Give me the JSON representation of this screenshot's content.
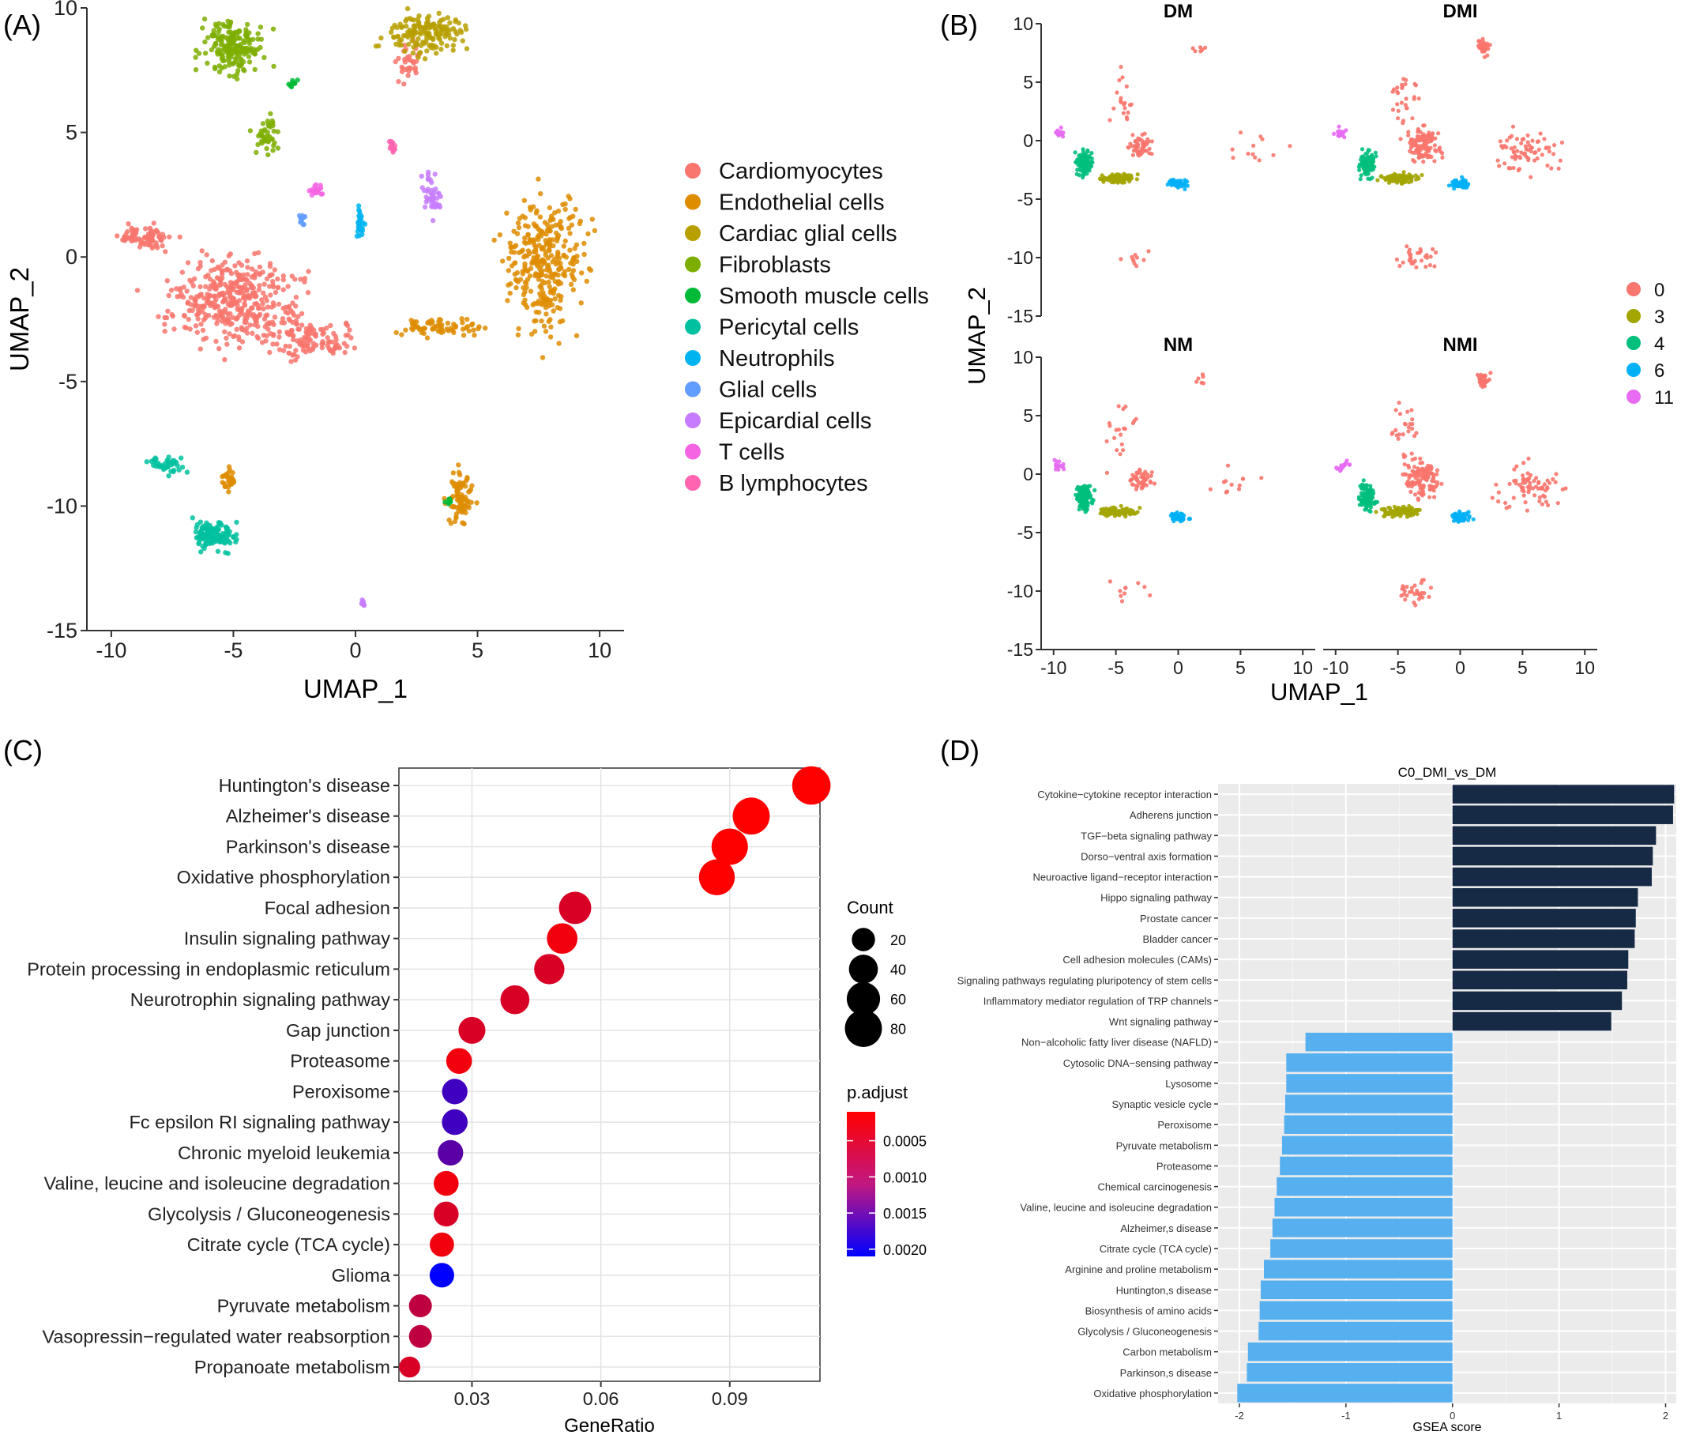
{
  "panel_labels": [
    "(A)",
    "(B)",
    "(C)",
    "(D)"
  ],
  "colors": {
    "grid_bg": "#ebebeb",
    "pos_bar": "#172a45",
    "neg_bar": "#56b0f0",
    "axis": "#333333"
  },
  "chart_data": [
    {
      "panel": "(A)",
      "type": "scatter",
      "xlabel": "UMAP_1",
      "ylabel": "UMAP_2",
      "xlim": [
        -11,
        11
      ],
      "ylim": [
        -15,
        10
      ],
      "x_ticks": [
        -10,
        -5,
        0,
        5,
        10
      ],
      "y_ticks": [
        10,
        5,
        0,
        -5,
        -10,
        -15
      ],
      "legend_position": "right",
      "clusters": [
        {
          "name": "Cardiomyocytes",
          "color": "#f8766d"
        },
        {
          "name": "Endothelial cells",
          "color": "#de8c00"
        },
        {
          "name": "Cardiac glial cells",
          "color": "#b79f00"
        },
        {
          "name": "Fibroblasts",
          "color": "#7cae00"
        },
        {
          "name": "Smooth muscle cells",
          "color": "#00ba38"
        },
        {
          "name": "Pericytal cells",
          "color": "#00c19f"
        },
        {
          "name": "Neutrophils",
          "color": "#00b4f0"
        },
        {
          "name": "Glial cells",
          "color": "#619cff"
        },
        {
          "name": "Epicardial cells",
          "color": "#c77cff"
        },
        {
          "name": "T cells",
          "color": "#f564e3"
        },
        {
          "name": "B lymphocytes",
          "color": "#ff64b0"
        }
      ]
    },
    {
      "panel": "(B)",
      "type": "scatter",
      "xlabel": "UMAP_1",
      "ylabel": "UMAP_2",
      "xlim": [
        -11,
        11
      ],
      "ylim": [
        -15,
        10
      ],
      "x_ticks": [
        -10,
        -5,
        0,
        5,
        10
      ],
      "y_ticks": [
        10,
        5,
        0,
        -5,
        -10,
        -15
      ],
      "facets": [
        "DM",
        "DMI",
        "NM",
        "NMI"
      ],
      "legend_position": "right",
      "clusters": [
        {
          "name": "0",
          "color": "#f8766d"
        },
        {
          "name": "3",
          "color": "#a3a500"
        },
        {
          "name": "4",
          "color": "#00bf7d"
        },
        {
          "name": "6",
          "color": "#00b0f6"
        },
        {
          "name": "11",
          "color": "#e76bf3"
        }
      ]
    },
    {
      "panel": "(C)",
      "type": "scatter",
      "xlabel": "GeneRatio",
      "xlim": [
        0.013,
        0.111
      ],
      "x_ticks": [
        0.03,
        0.06,
        0.09
      ],
      "x_tick_labels": [
        "0.03",
        "0.06",
        "0.09"
      ],
      "size_legend_title": "Count",
      "size_legend_values": [
        20,
        40,
        60,
        80
      ],
      "color_legend_title": "p.adjust",
      "color_legend_ticks": [
        0.0005,
        0.001,
        0.0015,
        0.002
      ],
      "color_legend_labels": [
        "0.0005",
        "0.0010",
        "0.0015",
        "0.0020"
      ],
      "color_range": [
        0.0001,
        0.0021
      ],
      "grid": true,
      "points": [
        {
          "term": "Huntington's disease",
          "gene_ratio": 0.109,
          "count": 88,
          "p_adjust": 0.0001
        },
        {
          "term": "Alzheimer's disease",
          "gene_ratio": 0.095,
          "count": 80,
          "p_adjust": 0.0001
        },
        {
          "term": "Parkinson's disease",
          "gene_ratio": 0.09,
          "count": 76,
          "p_adjust": 0.0001
        },
        {
          "term": "Oxidative phosphorylation",
          "gene_ratio": 0.087,
          "count": 73,
          "p_adjust": 0.0001
        },
        {
          "term": "Focal adhesion",
          "gene_ratio": 0.054,
          "count": 55,
          "p_adjust": 0.0004
        },
        {
          "term": "Insulin signaling pathway",
          "gene_ratio": 0.051,
          "count": 47,
          "p_adjust": 0.0002
        },
        {
          "term": "Protein processing in endoplasmic reticulum",
          "gene_ratio": 0.048,
          "count": 46,
          "p_adjust": 0.0004
        },
        {
          "term": "Neurotrophin signaling pathway",
          "gene_ratio": 0.04,
          "count": 40,
          "p_adjust": 0.0004
        },
        {
          "term": "Gap junction",
          "gene_ratio": 0.03,
          "count": 32,
          "p_adjust": 0.0004
        },
        {
          "term": "Proteasome",
          "gene_ratio": 0.027,
          "count": 28,
          "p_adjust": 0.0002
        },
        {
          "term": "Peroxisome",
          "gene_ratio": 0.026,
          "count": 27,
          "p_adjust": 0.0016
        },
        {
          "term": "Fc epsilon RI signaling pathway",
          "gene_ratio": 0.026,
          "count": 28,
          "p_adjust": 0.0016
        },
        {
          "term": "Chronic myeloid leukemia",
          "gene_ratio": 0.025,
          "count": 27,
          "p_adjust": 0.0014
        },
        {
          "term": "Valine, leucine and isoleucine degradation",
          "gene_ratio": 0.024,
          "count": 25,
          "p_adjust": 0.0002
        },
        {
          "term": "Glycolysis / Gluconeogenesis",
          "gene_ratio": 0.024,
          "count": 25,
          "p_adjust": 0.0004
        },
        {
          "term": "Citrate cycle (TCA cycle)",
          "gene_ratio": 0.023,
          "count": 23,
          "p_adjust": 0.0002
        },
        {
          "term": "Glioma",
          "gene_ratio": 0.023,
          "count": 24,
          "p_adjust": 0.0021
        },
        {
          "term": "Pyruvate metabolism",
          "gene_ratio": 0.018,
          "count": 19,
          "p_adjust": 0.0006
        },
        {
          "term": "Vasopressin−regulated water reabsorption",
          "gene_ratio": 0.018,
          "count": 19,
          "p_adjust": 0.0006
        },
        {
          "term": "Propanoate metabolism",
          "gene_ratio": 0.0155,
          "count": 14,
          "p_adjust": 0.0004
        }
      ]
    },
    {
      "panel": "(D)",
      "type": "bar",
      "orientation": "horizontal",
      "title": "C0_DMI_vs_DM",
      "xlabel": "GSEA score",
      "xlim": [
        -2.2,
        2.1
      ],
      "x_ticks": [
        -2,
        -1,
        0,
        1,
        2
      ],
      "categories": [
        "Cytokine−cytokine receptor interaction",
        "Adherens junction",
        "TGF−beta signaling pathway",
        "Dorso−ventral axis formation",
        "Neuroactive ligand−receptor interaction",
        "Hippo signaling pathway",
        "Prostate cancer",
        "Bladder cancer",
        "Cell adhesion molecules (CAMs)",
        "Signaling pathways regulating pluripotency of stem cells",
        "Inflammatory mediator regulation of TRP channels",
        "Wnt signaling pathway",
        "Non−alcoholic fatty liver disease (NAFLD)",
        "Cytosolic DNA−sensing pathway",
        "Lysosome",
        "Synaptic vesicle cycle",
        "Peroxisome",
        "Pyruvate metabolism",
        "Proteasome",
        "Chemical carcinogenesis",
        "Valine, leucine and isoleucine degradation",
        "Alzheimer,s disease",
        "Citrate cycle (TCA cycle)",
        "Arginine and proline metabolism",
        "Huntington,s disease",
        "Biosynthesis of amino acids",
        "Glycolysis / Gluconeogenesis",
        "Carbon metabolism",
        "Parkinson,s disease",
        "Oxidative phosphorylation"
      ],
      "values": [
        2.08,
        2.07,
        1.91,
        1.88,
        1.87,
        1.74,
        1.72,
        1.71,
        1.65,
        1.64,
        1.59,
        1.49,
        -1.38,
        -1.56,
        -1.56,
        -1.57,
        -1.58,
        -1.6,
        -1.62,
        -1.65,
        -1.67,
        -1.69,
        -1.71,
        -1.77,
        -1.8,
        -1.81,
        -1.82,
        -1.92,
        -1.93,
        -2.02
      ]
    }
  ]
}
